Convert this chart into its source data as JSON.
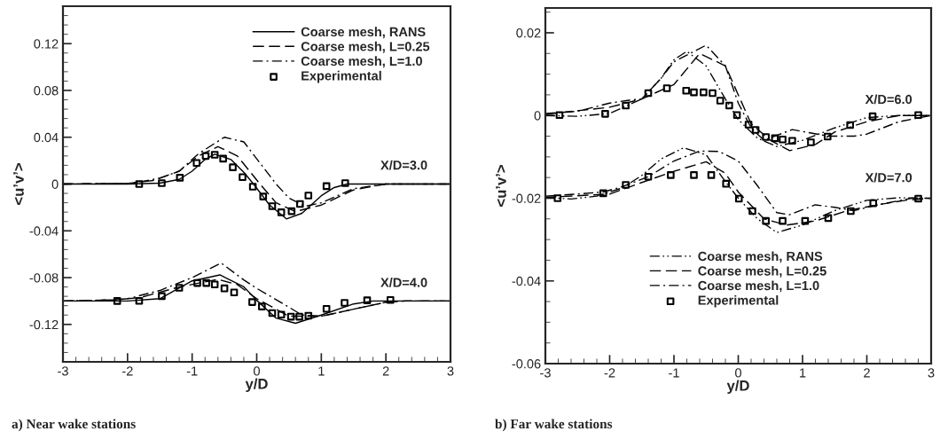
{
  "chart_data": [
    {
      "type": "line",
      "xlabel": "y/D",
      "ylabel": "<u’v’>",
      "xlim": [
        -3,
        3
      ],
      "xticks": [
        -3,
        -2,
        -1,
        0,
        1,
        2,
        3
      ],
      "ylim": [
        -0.152,
        0.152
      ],
      "yticks": [
        {
          "value": -0.12,
          "label": "-0.12"
        },
        {
          "value": -0.08,
          "label": "-0.08"
        },
        {
          "value": -0.04,
          "label": "-0.04"
        },
        0,
        0.04,
        0.08,
        0.12
      ],
      "legend": "top right",
      "grid": false,
      "annotations": [
        "a) Near wake stations",
        "X/D=3.0",
        "X/D=4.0"
      ],
      "series": [
        {
          "name": "Coarse mesh, RANS",
          "line_style": "solid",
          "color": "#000000",
          "x": [
            -3,
            -2,
            -1.5,
            -1.2,
            -1.0,
            -0.8,
            -0.65,
            -0.4,
            -0.2,
            -0.05,
            0.2,
            0.46,
            0.7,
            1.0,
            1.2,
            1.4,
            2,
            3
          ],
          "values": [
            0,
            0,
            0.0008,
            0.004,
            0.011,
            0.021,
            0.0255,
            0.021,
            0.01,
            0,
            -0.018,
            -0.0298,
            -0.025,
            -0.01,
            -0.003,
            0,
            0,
            0
          ]
        },
        {
          "name": "Coarse mesh, L=0.25",
          "line_style": "dashed",
          "color": "#000000",
          "x": [
            -3,
            -2,
            -1.6,
            -1.2,
            -0.9,
            -0.6,
            -0.3,
            0.05,
            0.3,
            0.6,
            1.0,
            1.5,
            2.0,
            3
          ],
          "values": [
            0,
            0.0005,
            0.003,
            0.011,
            0.024,
            0.032,
            0.024,
            0,
            -0.016,
            -0.0235,
            -0.018,
            -0.005,
            0,
            0
          ]
        },
        {
          "name": "Coarse mesh, L=1.0",
          "line_style": "dashdot",
          "color": "#000000",
          "x": [
            -3,
            -2,
            -1.8,
            -1.5,
            -1.2,
            -0.9,
            -0.5,
            -0.2,
            0.05,
            0.3,
            0.5,
            0.75,
            1.0,
            1.5,
            2.0,
            3
          ],
          "values": [
            0,
            0.0005,
            0.002,
            0.005,
            0.011,
            0.026,
            0.04,
            0.036,
            0.018,
            0,
            -0.012,
            -0.019,
            -0.016,
            -0.004,
            0,
            0
          ]
        },
        {
          "name": "Experimental",
          "type": "scatter",
          "marker": "square",
          "color": "#000000",
          "x": [
            -1.82,
            -1.47,
            -1.19,
            -0.93,
            -0.79,
            -0.65,
            -0.52,
            -0.37,
            -0.22,
            -0.06,
            0.1,
            0.24,
            0.38,
            0.54,
            0.67,
            0.8,
            1.08,
            1.37
          ],
          "values": [
            0,
            0.0008,
            0.0054,
            0.018,
            0.024,
            0.025,
            0.0217,
            0.0143,
            0.0059,
            -0.0023,
            -0.0107,
            -0.019,
            -0.0242,
            -0.0232,
            -0.0171,
            -0.0099,
            -0.0018,
            0.0008
          ]
        },
        {
          "line_style": "solid",
          "color": "#000000",
          "x": [
            -3,
            -2,
            -1.5,
            -1.0,
            -0.57,
            -0.2,
            0,
            0.3,
            0.6,
            1.0,
            1.5,
            1.8,
            2.0,
            3
          ],
          "values": [
            -0.1,
            -0.1,
            -0.098,
            -0.0828,
            -0.0777,
            -0.0879,
            -0.0994,
            -0.1146,
            -0.119,
            -0.112,
            -0.1025,
            -0.1,
            -0.1,
            -0.1
          ]
        },
        {
          "line_style": "dashed",
          "color": "#000000",
          "x": [
            -3,
            -2.2,
            -1.8,
            -1.2,
            -0.6,
            -0.3,
            0,
            0.5,
            1.0,
            1.5,
            2.0,
            2.3,
            3
          ],
          "values": [
            -0.1,
            -0.099,
            -0.097,
            -0.088,
            -0.0815,
            -0.086,
            -0.098,
            -0.113,
            -0.113,
            -0.107,
            -0.101,
            -0.1,
            -0.1
          ]
        },
        {
          "line_style": "dashdot",
          "color": "#000000",
          "x": [
            -3,
            -2.2,
            -2,
            -1.5,
            -1,
            -0.55,
            -0.2,
            0,
            0.4,
            0.7,
            1.0,
            1.5,
            2.0,
            2.3,
            3
          ],
          "values": [
            -0.1,
            -0.099,
            -0.098,
            -0.091,
            -0.08,
            -0.0675,
            -0.082,
            -0.0892,
            -0.102,
            -0.112,
            -0.113,
            -0.107,
            -0.101,
            -0.1,
            -0.1
          ]
        },
        {
          "type": "scatter",
          "marker": "square",
          "color": "#000000",
          "x": [
            -2.16,
            -1.82,
            -1.47,
            -1.2,
            -0.92,
            -0.78,
            -0.65,
            -0.5,
            -0.35,
            -0.07,
            0.08,
            0.24,
            0.38,
            0.53,
            0.66,
            0.8,
            1.08,
            1.36,
            1.71,
            2.07
          ],
          "values": [
            -0.1,
            -0.0999,
            -0.0958,
            -0.0887,
            -0.0846,
            -0.0846,
            -0.0859,
            -0.0892,
            -0.0927,
            -0.1009,
            -0.1047,
            -0.1103,
            -0.1116,
            -0.1134,
            -0.1134,
            -0.1126,
            -0.1067,
            -0.1016,
            -0.0994,
            -0.0991
          ]
        }
      ]
    },
    {
      "type": "line",
      "xlabel": "y/D",
      "ylabel": "<u’v’>",
      "xlim": [
        -3,
        3
      ],
      "xticks": [
        -3,
        -2,
        -1,
        0,
        1,
        2,
        3
      ],
      "ylim": [
        -0.06,
        0.026
      ],
      "yticks": [
        {
          "value": -0.06,
          "label": "-0.06"
        },
        {
          "value": -0.04,
          "label": "-0.04"
        },
        {
          "value": -0.02,
          "label": "-0.02"
        },
        0,
        0.02
      ],
      "legend": "bottom",
      "grid": false,
      "annotations": [
        "b) Far wake stations",
        "X/D=6.0",
        "X/D=7.0"
      ],
      "series": [
        {
          "name": "Coarse mesh, RANS",
          "line_style": "dashdotdot",
          "color": "#000000",
          "x": [
            -3,
            -2.5,
            -2,
            -1.5,
            -1.2,
            -1,
            -0.8,
            -0.5,
            -0.2,
            0,
            0.3,
            0.6,
            1.0,
            1.5,
            2.0,
            2.5,
            3
          ],
          "values": [
            0,
            -0.0002,
            0.0005,
            0.004,
            0.009,
            0.0135,
            0.0155,
            0.012,
            0.004,
            -0.001,
            -0.0055,
            -0.0075,
            -0.006,
            -0.003,
            -0.0005,
            0,
            0
          ]
        },
        {
          "name": "Coarse mesh, L=0.25",
          "line_style": "dashed",
          "color": "#000000",
          "x": [
            -3,
            -2,
            -1.5,
            -1.0,
            -0.6,
            -0.2,
            0,
            0.2,
            0.5,
            0.8,
            1.2,
            1.5,
            2.0,
            2.5,
            3
          ],
          "values": [
            0.0003,
            0.002,
            0.004,
            0.0075,
            0.015,
            0.012,
            0.005,
            -0.002,
            -0.006,
            -0.0085,
            -0.007,
            -0.004,
            -0.0015,
            0,
            0
          ]
        },
        {
          "name": "Coarse mesh, L=1.0",
          "line_style": "dashdot",
          "color": "#000000",
          "x": [
            -3,
            -2.5,
            -2,
            -1.7,
            -1.5,
            -1.2,
            -1.0,
            -0.5,
            -0.2,
            0,
            0.2,
            0.4,
            0.84,
            1.4,
            1.8,
            2.0,
            2.5,
            3
          ],
          "values": [
            0.0005,
            0.001,
            0.003,
            0.0037,
            0.004,
            0.009,
            0.013,
            0.017,
            0.012,
            0.003,
            -0.003,
            -0.006,
            -0.0034,
            -0.005,
            -0.005,
            -0.0045,
            -0.0015,
            0
          ]
        },
        {
          "name": "Experimental",
          "type": "scatter",
          "marker": "square",
          "color": "#000000",
          "x": [
            -2.78,
            -2.07,
            -1.75,
            -1.4,
            -1.11,
            -0.81,
            -0.69,
            -0.54,
            -0.4,
            -0.28,
            -0.14,
            -0.02,
            0.16,
            0.27,
            0.43,
            0.57,
            0.69,
            0.84,
            1.13,
            1.39,
            1.74,
            2.09,
            2.8
          ],
          "values": [
            0.0001,
            0.0004,
            0.0024,
            0.0054,
            0.0066,
            0.006,
            0.0056,
            0.0056,
            0.0054,
            0.0036,
            0.0024,
            0.0001,
            -0.0022,
            -0.0035,
            -0.0052,
            -0.0055,
            -0.0058,
            -0.0061,
            -0.0065,
            -0.0051,
            -0.0023,
            -0.0002,
            0.0001
          ]
        },
        {
          "line_style": "dashdotdot",
          "color": "#000000",
          "x": [
            -3,
            -2.6,
            -2.2,
            -1.8,
            -1.5,
            -1.2,
            -0.85,
            -0.5,
            -0.2,
            0,
            0.3,
            0.6,
            1.0,
            1.5,
            2.0,
            2.5,
            3
          ],
          "values": [
            -0.0198,
            -0.0202,
            -0.0195,
            -0.0175,
            -0.0145,
            -0.0105,
            -0.0078,
            -0.0095,
            -0.016,
            -0.02,
            -0.025,
            -0.0283,
            -0.0265,
            -0.023,
            -0.0205,
            -0.0199,
            -0.02
          ]
        },
        {
          "line_style": "dashed",
          "color": "#000000",
          "x": [
            -3,
            -2,
            -1.5,
            -1.0,
            -0.5,
            -0.2,
            0,
            0.4,
            0.75,
            1.2,
            1.7,
            2.2,
            2.6,
            3
          ],
          "values": [
            -0.0198,
            -0.019,
            -0.0162,
            -0.0135,
            -0.0112,
            -0.014,
            -0.0185,
            -0.025,
            -0.0265,
            -0.0255,
            -0.023,
            -0.0215,
            -0.0205,
            -0.02
          ]
        },
        {
          "line_style": "dashdot",
          "color": "#000000",
          "x": [
            -3,
            -2.5,
            -2.1,
            -1.8,
            -1.4,
            -1,
            -0.6,
            -0.3,
            0,
            0.3,
            0.6,
            0.8,
            1.2,
            1.5,
            1.8,
            2.2,
            2.7,
            3
          ],
          "values": [
            -0.0195,
            -0.019,
            -0.0185,
            -0.0172,
            -0.0148,
            -0.011,
            -0.0086,
            -0.0087,
            -0.011,
            -0.017,
            -0.0235,
            -0.024,
            -0.0216,
            -0.0222,
            -0.023,
            -0.0215,
            -0.02,
            -0.02
          ]
        },
        {
          "type": "scatter",
          "marker": "square",
          "color": "#000000",
          "x": [
            -2.81,
            -2.1,
            -1.75,
            -1.4,
            -1.05,
            -0.69,
            -0.42,
            -0.19,
            0.01,
            0.22,
            0.43,
            0.69,
            1.04,
            1.4,
            1.75,
            2.1,
            2.8
          ],
          "values": [
            -0.02,
            -0.0188,
            -0.0168,
            -0.0148,
            -0.0144,
            -0.0144,
            -0.0144,
            -0.0165,
            -0.0201,
            -0.0231,
            -0.0255,
            -0.0255,
            -0.0255,
            -0.0248,
            -0.0231,
            -0.0212,
            -0.0201
          ]
        }
      ]
    }
  ]
}
